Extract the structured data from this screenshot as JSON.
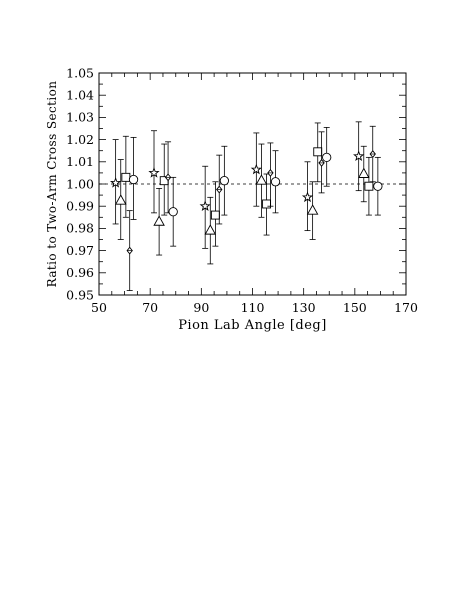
{
  "chart_data": {
    "type": "scatter",
    "title": "",
    "xlabel": "Pion Lab Angle  [deg]",
    "ylabel": "Ratio to Two-Arm Cross Section",
    "xlim": [
      50,
      170
    ],
    "ylim": [
      0.95,
      1.05
    ],
    "x_ticks": [
      50,
      70,
      90,
      110,
      130,
      150,
      170
    ],
    "y_ticks": [
      0.95,
      0.96,
      0.97,
      0.98,
      0.99,
      1.0,
      1.01,
      1.02,
      1.03,
      1.04,
      1.05
    ],
    "x_tick_labels": [
      "50",
      "70",
      "90",
      "110",
      "130",
      "150",
      "170"
    ],
    "y_tick_labels": [
      "0.95",
      "0.96",
      "0.97",
      "0.98",
      "0.99",
      "1.00",
      "1.01",
      "1.02",
      "1.03",
      "1.04",
      "1.05"
    ],
    "grid": false,
    "reference_line": {
      "y": 1.0,
      "style": "dashed"
    },
    "series": [
      {
        "marker": "star",
        "points": [
          {
            "x": 56.5,
            "y": 1.0005,
            "lo": 0.982,
            "hi": 1.02
          },
          {
            "x": 71.5,
            "y": 1.005,
            "lo": 0.987,
            "hi": 1.024
          },
          {
            "x": 91.5,
            "y": 0.99,
            "lo": 0.971,
            "hi": 1.008
          },
          {
            "x": 111.5,
            "y": 1.0065,
            "lo": 0.99,
            "hi": 1.023
          },
          {
            "x": 131.5,
            "y": 0.994,
            "lo": 0.979,
            "hi": 1.01
          },
          {
            "x": 151.5,
            "y": 1.0125,
            "lo": 0.997,
            "hi": 1.028
          }
        ]
      },
      {
        "marker": "triangle",
        "points": [
          {
            "x": 58.5,
            "y": 0.9925,
            "lo": 0.975,
            "hi": 1.011
          },
          {
            "x": 73.5,
            "y": 0.983,
            "lo": 0.968,
            "hi": 0.998
          },
          {
            "x": 93.5,
            "y": 0.979,
            "lo": 0.964,
            "hi": 0.994
          },
          {
            "x": 113.5,
            "y": 1.0015,
            "lo": 0.985,
            "hi": 1.018
          },
          {
            "x": 133.5,
            "y": 0.988,
            "lo": 0.975,
            "hi": 1.001
          },
          {
            "x": 153.5,
            "y": 1.0045,
            "lo": 0.992,
            "hi": 1.017
          }
        ]
      },
      {
        "marker": "square",
        "points": [
          {
            "x": 60.5,
            "y": 1.003,
            "lo": 0.985,
            "hi": 1.0215
          },
          {
            "x": 75.5,
            "y": 1.0015,
            "lo": 0.986,
            "hi": 1.018
          },
          {
            "x": 95.5,
            "y": 0.986,
            "lo": 0.972,
            "hi": 1.001
          },
          {
            "x": 115.5,
            "y": 0.991,
            "lo": 0.977,
            "hi": 1.0045
          },
          {
            "x": 135.5,
            "y": 1.0145,
            "lo": 1.001,
            "hi": 1.0275
          },
          {
            "x": 155.5,
            "y": 0.999,
            "lo": 0.986,
            "hi": 1.012
          }
        ]
      },
      {
        "marker": "diamond",
        "points": [
          {
            "x": 62,
            "y": 0.97,
            "lo": 0.952,
            "hi": 0.988
          },
          {
            "x": 77,
            "y": 1.003,
            "lo": 0.987,
            "hi": 1.019
          },
          {
            "x": 97,
            "y": 0.9975,
            "lo": 0.982,
            "hi": 1.013
          },
          {
            "x": 117,
            "y": 1.005,
            "lo": 0.99,
            "hi": 1.0185
          },
          {
            "x": 137,
            "y": 1.0095,
            "lo": 0.996,
            "hi": 1.0235
          },
          {
            "x": 157,
            "y": 1.0135,
            "lo": 1.001,
            "hi": 1.026
          }
        ]
      },
      {
        "marker": "circle",
        "points": [
          {
            "x": 63.5,
            "y": 1.002,
            "lo": 0.984,
            "hi": 1.021
          },
          {
            "x": 79,
            "y": 0.9875,
            "lo": 0.972,
            "hi": 1.003
          },
          {
            "x": 99,
            "y": 1.0015,
            "lo": 0.986,
            "hi": 1.017
          },
          {
            "x": 119,
            "y": 1.001,
            "lo": 0.987,
            "hi": 1.015
          },
          {
            "x": 139,
            "y": 1.012,
            "lo": 0.999,
            "hi": 1.0255
          },
          {
            "x": 159,
            "y": 0.999,
            "lo": 0.986,
            "hi": 1.012
          }
        ]
      }
    ]
  }
}
